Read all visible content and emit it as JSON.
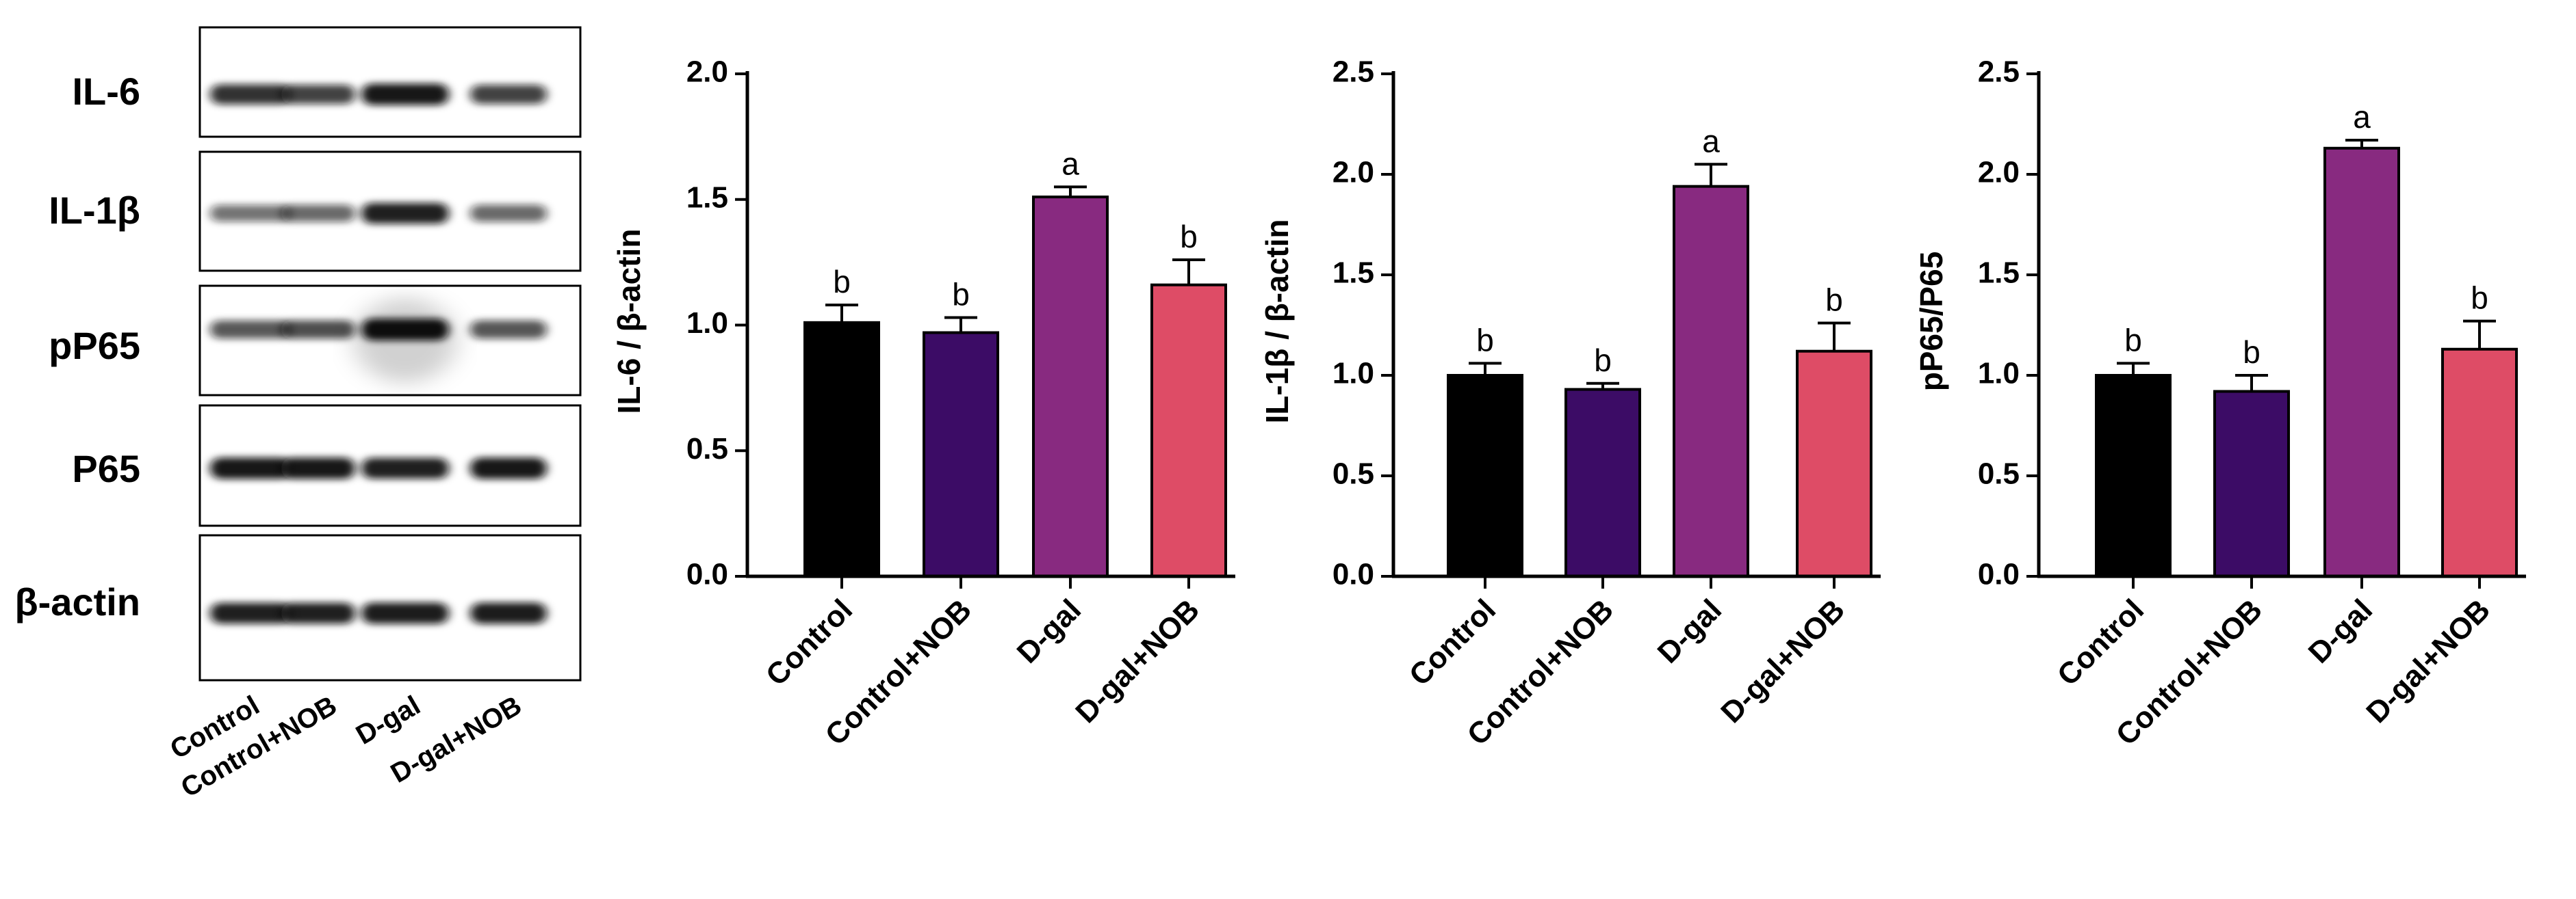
{
  "blot": {
    "rows": [
      {
        "label": "IL-6",
        "intensity": [
          0.8,
          0.72,
          0.95,
          0.72
        ]
      },
      {
        "label": "IL-1β",
        "intensity": [
          0.45,
          0.5,
          0.9,
          0.5
        ]
      },
      {
        "label": "pP65",
        "intensity": [
          0.6,
          0.65,
          1.0,
          0.62
        ]
      },
      {
        "label": "P65",
        "intensity": [
          0.95,
          0.95,
          0.9,
          0.95
        ]
      },
      {
        "label": "β-actin",
        "intensity": [
          0.9,
          0.9,
          0.92,
          0.92
        ]
      }
    ],
    "lanes": [
      "Control",
      "Control+NOB",
      "D-gal",
      "D-gal+NOB"
    ]
  },
  "chart_data": [
    {
      "type": "bar",
      "categories": [
        "Control",
        "Control+NOB",
        "D-gal",
        "D-gal+NOB"
      ],
      "values": [
        1.01,
        0.97,
        1.51,
        1.16
      ],
      "errors": [
        0.07,
        0.06,
        0.04,
        0.1
      ],
      "letters": [
        "b",
        "b",
        "a",
        "b"
      ],
      "colors": [
        "#000000",
        "#3c0c66",
        "#882a80",
        "#de4c66"
      ],
      "ylabel": "IL-6 / β-actin",
      "ylim": [
        0,
        2.0
      ],
      "ticks": [
        "0.0",
        "0.5",
        "1.0",
        "1.5",
        "2.0"
      ]
    },
    {
      "type": "bar",
      "categories": [
        "Control",
        "Control+NOB",
        "D-gal",
        "D-gal+NOB"
      ],
      "values": [
        1.0,
        0.93,
        1.94,
        1.12
      ],
      "errors": [
        0.06,
        0.03,
        0.11,
        0.14
      ],
      "letters": [
        "b",
        "b",
        "a",
        "b"
      ],
      "colors": [
        "#000000",
        "#3c0c66",
        "#882a80",
        "#de4c66"
      ],
      "ylabel": "IL-1β / β-actin",
      "ylim": [
        0,
        2.5
      ],
      "ticks": [
        "0.0",
        "0.5",
        "1.0",
        "1.5",
        "2.0",
        "2.5"
      ]
    },
    {
      "type": "bar",
      "categories": [
        "Control",
        "Control+NOB",
        "D-gal",
        "D-gal+NOB"
      ],
      "values": [
        1.0,
        0.92,
        2.13,
        1.13
      ],
      "errors": [
        0.06,
        0.08,
        0.04,
        0.14
      ],
      "letters": [
        "b",
        "b",
        "a",
        "b"
      ],
      "colors": [
        "#000000",
        "#3c0c66",
        "#882a80",
        "#de4c66"
      ],
      "ylabel": "pP65/P65",
      "ylim": [
        0,
        2.5
      ],
      "ticks": [
        "0.0",
        "0.5",
        "1.0",
        "1.5",
        "2.0",
        "2.5"
      ]
    }
  ]
}
